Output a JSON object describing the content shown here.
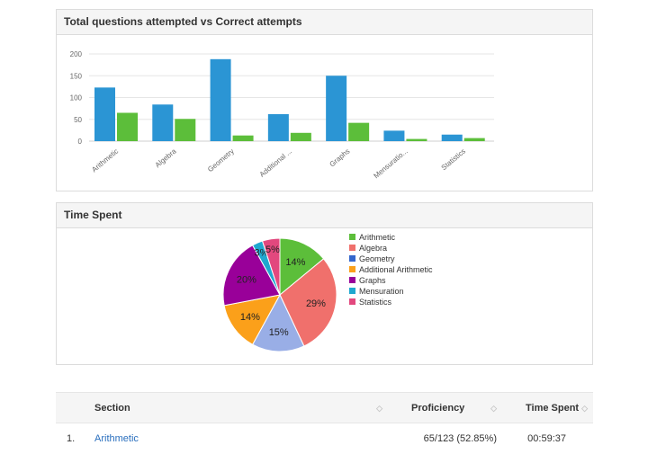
{
  "panel1": {
    "title": "Total questions attempted vs Correct attempts"
  },
  "panel2": {
    "title": "Time Spent"
  },
  "chart_data": [
    {
      "type": "bar",
      "title": "Total questions attempted vs Correct attempts",
      "categories": [
        "Arithmetic",
        "Algebra",
        "Geometry",
        "Additional ...",
        "Graphs",
        "Mensuratio...",
        "Statistics"
      ],
      "series": [
        {
          "name": "Attempted",
          "color": "#2b95d4",
          "values": [
            123,
            84,
            188,
            62,
            150,
            24,
            15
          ]
        },
        {
          "name": "Correct",
          "color": "#5cbe3a",
          "values": [
            65,
            51,
            13,
            19,
            42,
            5,
            7
          ]
        }
      ],
      "yticks": [
        0,
        50,
        100,
        150,
        200
      ],
      "ylim": [
        0,
        200
      ],
      "xlabel": "",
      "ylabel": "",
      "grid": true
    },
    {
      "type": "pie",
      "title": "Time Spent",
      "slices": [
        {
          "label": "Arithmetic",
          "value": 14,
          "color": "#5cbe3a",
          "text": "14%"
        },
        {
          "label": "Algebra",
          "value": 29,
          "color": "#f0706c",
          "text": "29%"
        },
        {
          "label": "Geometry",
          "value": 15,
          "color": "#99aee6",
          "text": "15%"
        },
        {
          "label": "Additional Arithmetic",
          "value": 14,
          "color": "#fba01a",
          "text": "14%"
        },
        {
          "label": "Graphs",
          "value": 20,
          "color": "#990099",
          "text": "20%"
        },
        {
          "label": "Mensuration",
          "value": 3,
          "color": "#1fa8cf",
          "text": "3%"
        },
        {
          "label": "Statistics",
          "value": 5,
          "color": "#e2487e",
          "text": "5%"
        }
      ],
      "legend_colors": [
        "#5cbe3a",
        "#f0706c",
        "#3366cc",
        "#fba01a",
        "#990099",
        "#1fa8cf",
        "#e2487e"
      ]
    }
  ],
  "table": {
    "headers": {
      "section": "Section",
      "proficiency": "Proficiency",
      "time": "Time Spent"
    },
    "sort_glyph": "◇",
    "rows": [
      {
        "num": "1.",
        "section": "Arithmetic",
        "proficiency": "65/123 (52.85%)",
        "time": "00:59:37"
      }
    ]
  }
}
